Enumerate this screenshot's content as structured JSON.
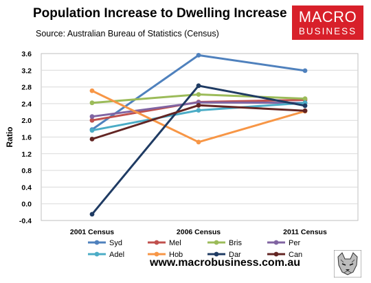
{
  "header": {
    "title": "Population Increase to Dwelling Increase",
    "subtitle": "Source: Australian Bureau of Statistics (Census)"
  },
  "logo": {
    "line1": "MACRO",
    "line2": "BUSINESS"
  },
  "footer": {
    "url": "www.macrobusiness.com.au"
  },
  "chart_data": {
    "type": "line",
    "ylabel": "Ratio",
    "ylim": [
      -0.4,
      3.6
    ],
    "yticks": [
      "-0.4",
      "0.0",
      "0.4",
      "0.8",
      "1.2",
      "1.6",
      "2.0",
      "2.4",
      "2.8",
      "3.2",
      "3.6"
    ],
    "categories": [
      "2001 Census",
      "2006 Census",
      "2011 Census"
    ],
    "grid": true,
    "legend_position": "bottom",
    "series": [
      {
        "name": "Syd",
        "color": "#4f81bd",
        "values": [
          1.78,
          3.56,
          3.19
        ]
      },
      {
        "name": "Mel",
        "color": "#c0504d",
        "values": [
          2.0,
          2.44,
          2.49
        ]
      },
      {
        "name": "Bris",
        "color": "#9bbb59",
        "values": [
          2.42,
          2.62,
          2.52
        ]
      },
      {
        "name": "Per",
        "color": "#8064a2",
        "values": [
          2.09,
          2.43,
          2.42
        ]
      },
      {
        "name": "Adel",
        "color": "#4bacc6",
        "values": [
          1.76,
          2.24,
          2.42
        ]
      },
      {
        "name": "Hob",
        "color": "#f79646",
        "values": [
          2.71,
          1.48,
          2.22
        ]
      },
      {
        "name": "Dar",
        "color": "#1f3b63",
        "values": [
          -0.25,
          2.83,
          2.35
        ]
      },
      {
        "name": "Can",
        "color": "#632523",
        "values": [
          1.55,
          2.36,
          2.23
        ]
      }
    ]
  }
}
